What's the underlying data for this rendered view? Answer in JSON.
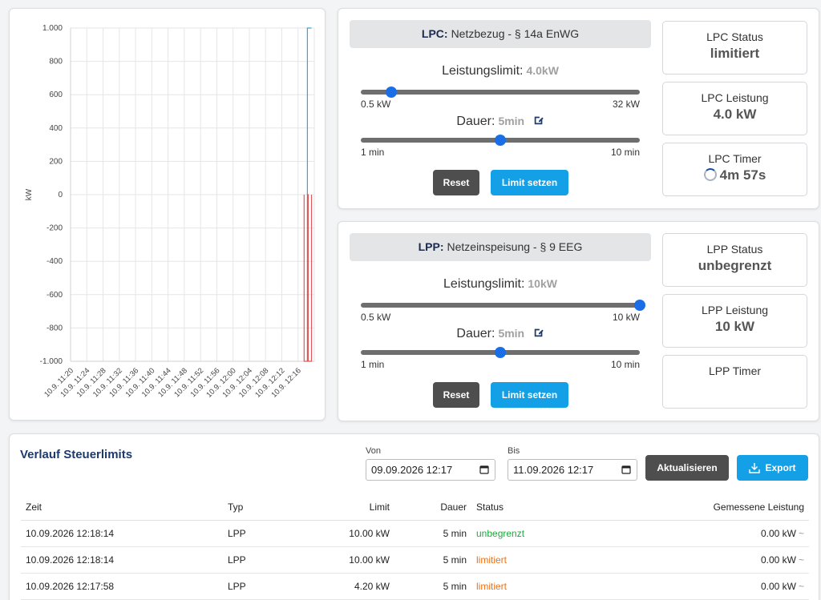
{
  "chart_data": {
    "type": "line",
    "ylabel": "kW",
    "ylim": [
      -1000,
      1000
    ],
    "yticks": [
      "1.000",
      "800",
      "600",
      "400",
      "200",
      "0",
      "-200",
      "-400",
      "-600",
      "-800",
      "-1.000"
    ],
    "ytick_values": [
      1000,
      800,
      600,
      400,
      200,
      0,
      -200,
      -400,
      -600,
      -800,
      -1000
    ],
    "x": [
      "10.9. 11:20",
      "10.9. 11:24",
      "10.9. 11:28",
      "10.9. 11:32",
      "10.9. 11:36",
      "10.9. 11:40",
      "10.9. 11:44",
      "10.9. 11:48",
      "10.9. 11:52",
      "10.9. 11:56",
      "10.9. 12:00",
      "10.9. 12:04",
      "10.9. 12:08",
      "10.9. 12:12",
      "10.9. 12:16"
    ],
    "series": [
      {
        "color": "#3aa0e0",
        "points": [
          [
            58.3,
            0
          ],
          [
            58.3,
            1000
          ],
          [
            59.3,
            1000
          ]
        ]
      },
      {
        "color": "#e05858",
        "points": [
          [
            57.5,
            0
          ],
          [
            57.5,
            -1000
          ],
          [
            58.3,
            -1000
          ],
          [
            58.3,
            0
          ],
          [
            58.5,
            0
          ],
          [
            58.5,
            -1000
          ],
          [
            59.3,
            -1000
          ],
          [
            59.3,
            0
          ]
        ]
      }
    ],
    "grid": true
  },
  "lpc": {
    "code": "LPC:",
    "title": "Netzbezug - § 14a EnWG",
    "limit_label": "Leistungslimit:",
    "limit_value": "4.0kW",
    "limit_fraction": 0.11,
    "limit_min": "0.5 kW",
    "limit_max": "32 kW",
    "duration_label": "Dauer:",
    "duration_value": "5min",
    "duration_fraction": 0.5,
    "duration_min": "1 min",
    "duration_max": "10 min",
    "reset_label": "Reset",
    "set_label": "Limit setzen",
    "status_title": "LPC Status",
    "status_value": "limitiert",
    "power_title": "LPC Leistung",
    "power_value": "4.0 kW",
    "timer_title": "LPC Timer",
    "timer_value": "4m 57s"
  },
  "lpp": {
    "code": "LPP:",
    "title": "Netzeinspeisung - § 9 EEG",
    "limit_label": "Leistungslimit:",
    "limit_value": "10kW",
    "limit_fraction": 1.0,
    "limit_min": "0.5 kW",
    "limit_max": "10 kW",
    "duration_label": "Dauer:",
    "duration_value": "5min",
    "duration_fraction": 0.5,
    "duration_min": "1 min",
    "duration_max": "10 min",
    "reset_label": "Reset",
    "set_label": "Limit setzen",
    "status_title": "LPP Status",
    "status_value": "unbegrenzt",
    "power_title": "LPP Leistung",
    "power_value": "10 kW",
    "timer_title": "LPP Timer",
    "timer_value": ""
  },
  "history": {
    "title": "Verlauf Steuerlimits",
    "from_label": "Von",
    "from_value": "09.09.2026 12:17",
    "to_label": "Bis",
    "to_value": "11.09.2026 12:17",
    "update_label": "Aktualisieren",
    "export_label": "Export",
    "columns": [
      "Zeit",
      "Typ",
      "Limit",
      "Dauer",
      "Status",
      "Gemessene Leistung"
    ],
    "rows": [
      {
        "time": "10.09.2026 12:18:14",
        "type": "LPP",
        "limit": "10.00 kW",
        "duration": "5 min",
        "status": "unbegrenzt",
        "status_color": "#1eaa3c",
        "power": "0.00 kW",
        "tilde": "~"
      },
      {
        "time": "10.09.2026 12:18:14",
        "type": "LPP",
        "limit": "10.00 kW",
        "duration": "5 min",
        "status": "limitiert",
        "status_color": "#f07012",
        "power": "0.00 kW",
        "tilde": "~"
      },
      {
        "time": "10.09.2026 12:17:58",
        "type": "LPP",
        "limit": "4.20 kW",
        "duration": "5 min",
        "status": "limitiert",
        "status_color": "#f07012",
        "power": "0.00 kW",
        "tilde": "~"
      }
    ]
  }
}
